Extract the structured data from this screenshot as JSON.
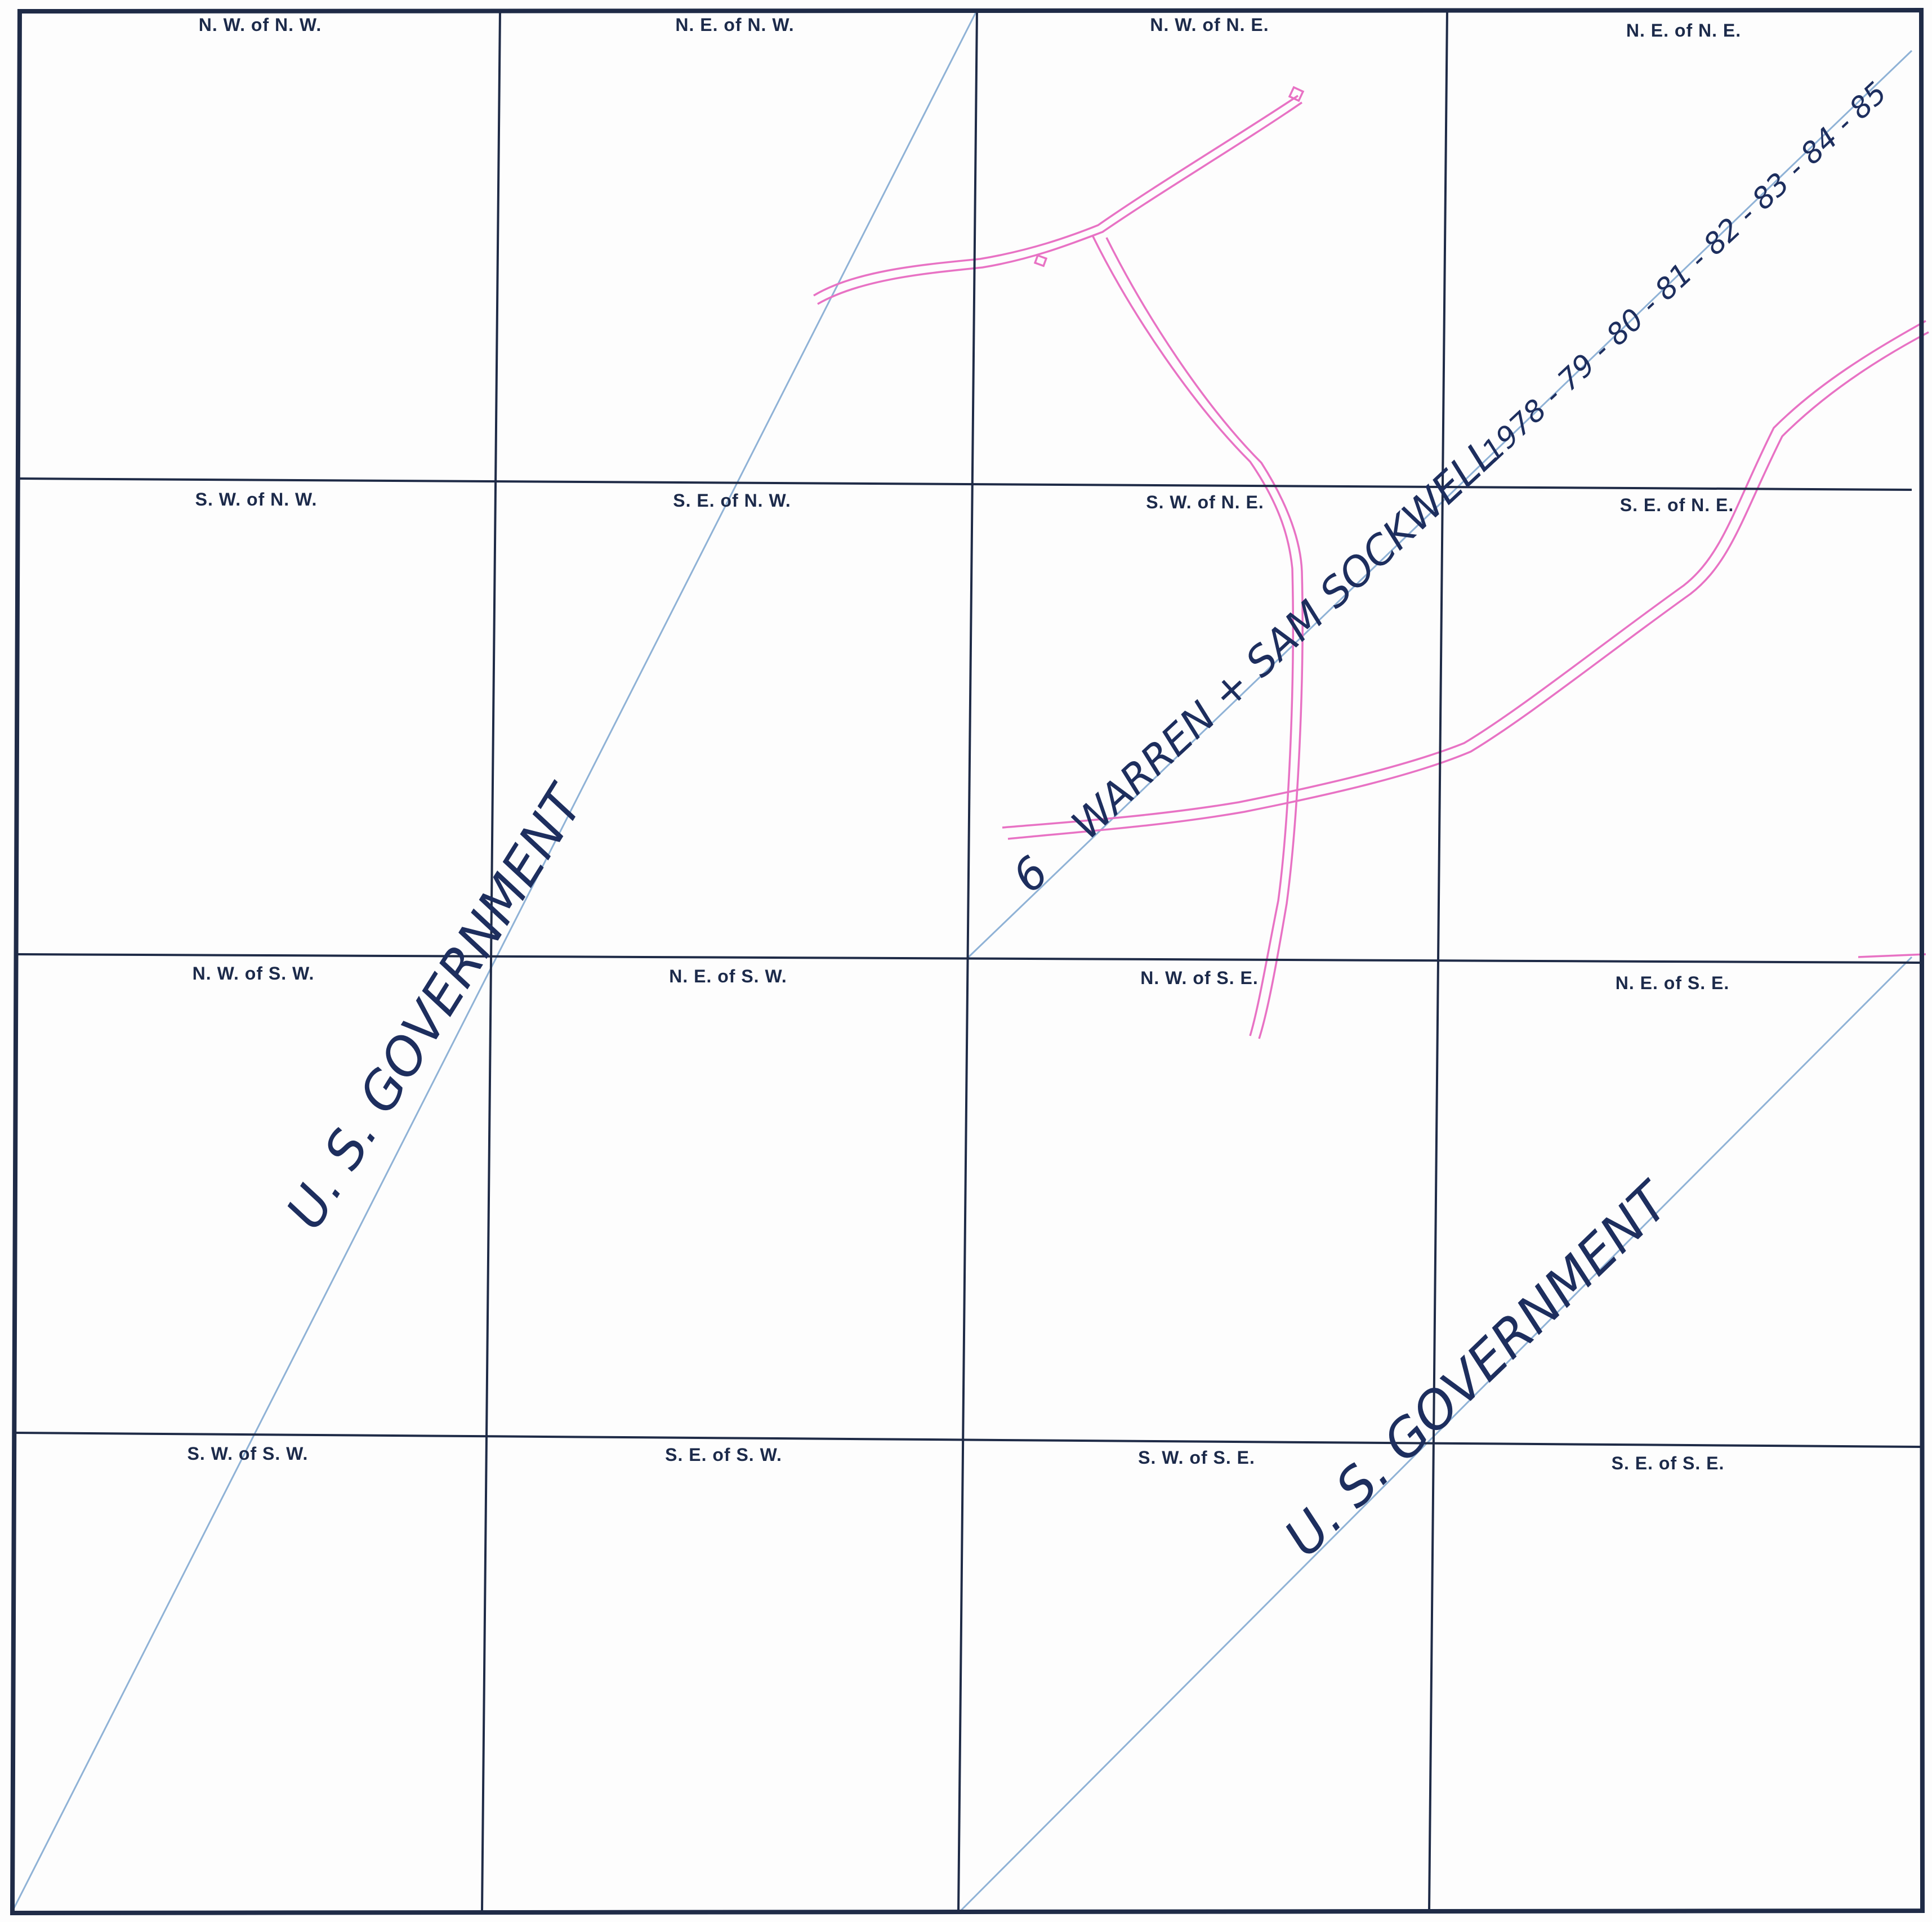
{
  "quarter_labels": {
    "nw_of_nw": "N. W. of N. W.",
    "ne_of_nw": "N. E. of N. W.",
    "nw_of_ne": "N. W. of N. E.",
    "ne_of_ne": "N. E. of N. E.",
    "sw_of_nw": "S. W. of N. W.",
    "se_of_nw": "S. E. of N. W.",
    "sw_of_ne": "S. W. of N. E.",
    "se_of_ne": "S. E. of N. E.",
    "nw_of_sw": "N. W. of S. W.",
    "ne_of_sw": "N. E. of S. W.",
    "nw_of_se": "N. W. of S. E.",
    "ne_of_se": "N. E. of S. E.",
    "sw_of_sw": "S. W. of S. W.",
    "se_of_sw": "S. E. of S. W.",
    "sw_of_se": "S. W. of S. E.",
    "se_of_se": "S. E. of S. E."
  },
  "annotations": {
    "west_owner": "U. S. GOVERNMENT",
    "east_owner": "U. S. GOVERNMENT",
    "lease_prefix": "6",
    "lease_holder": "WARREN + SAM SOCKWELL",
    "lease_years": "1978 - 79 - 80 - 81 - 82 - 83 - 84 - 85"
  },
  "colors": {
    "grid": "#1f2b47",
    "diagonal_lines": "#8fb2d6",
    "roads": "#e872c4",
    "handwriting": "#1d2e5e"
  }
}
